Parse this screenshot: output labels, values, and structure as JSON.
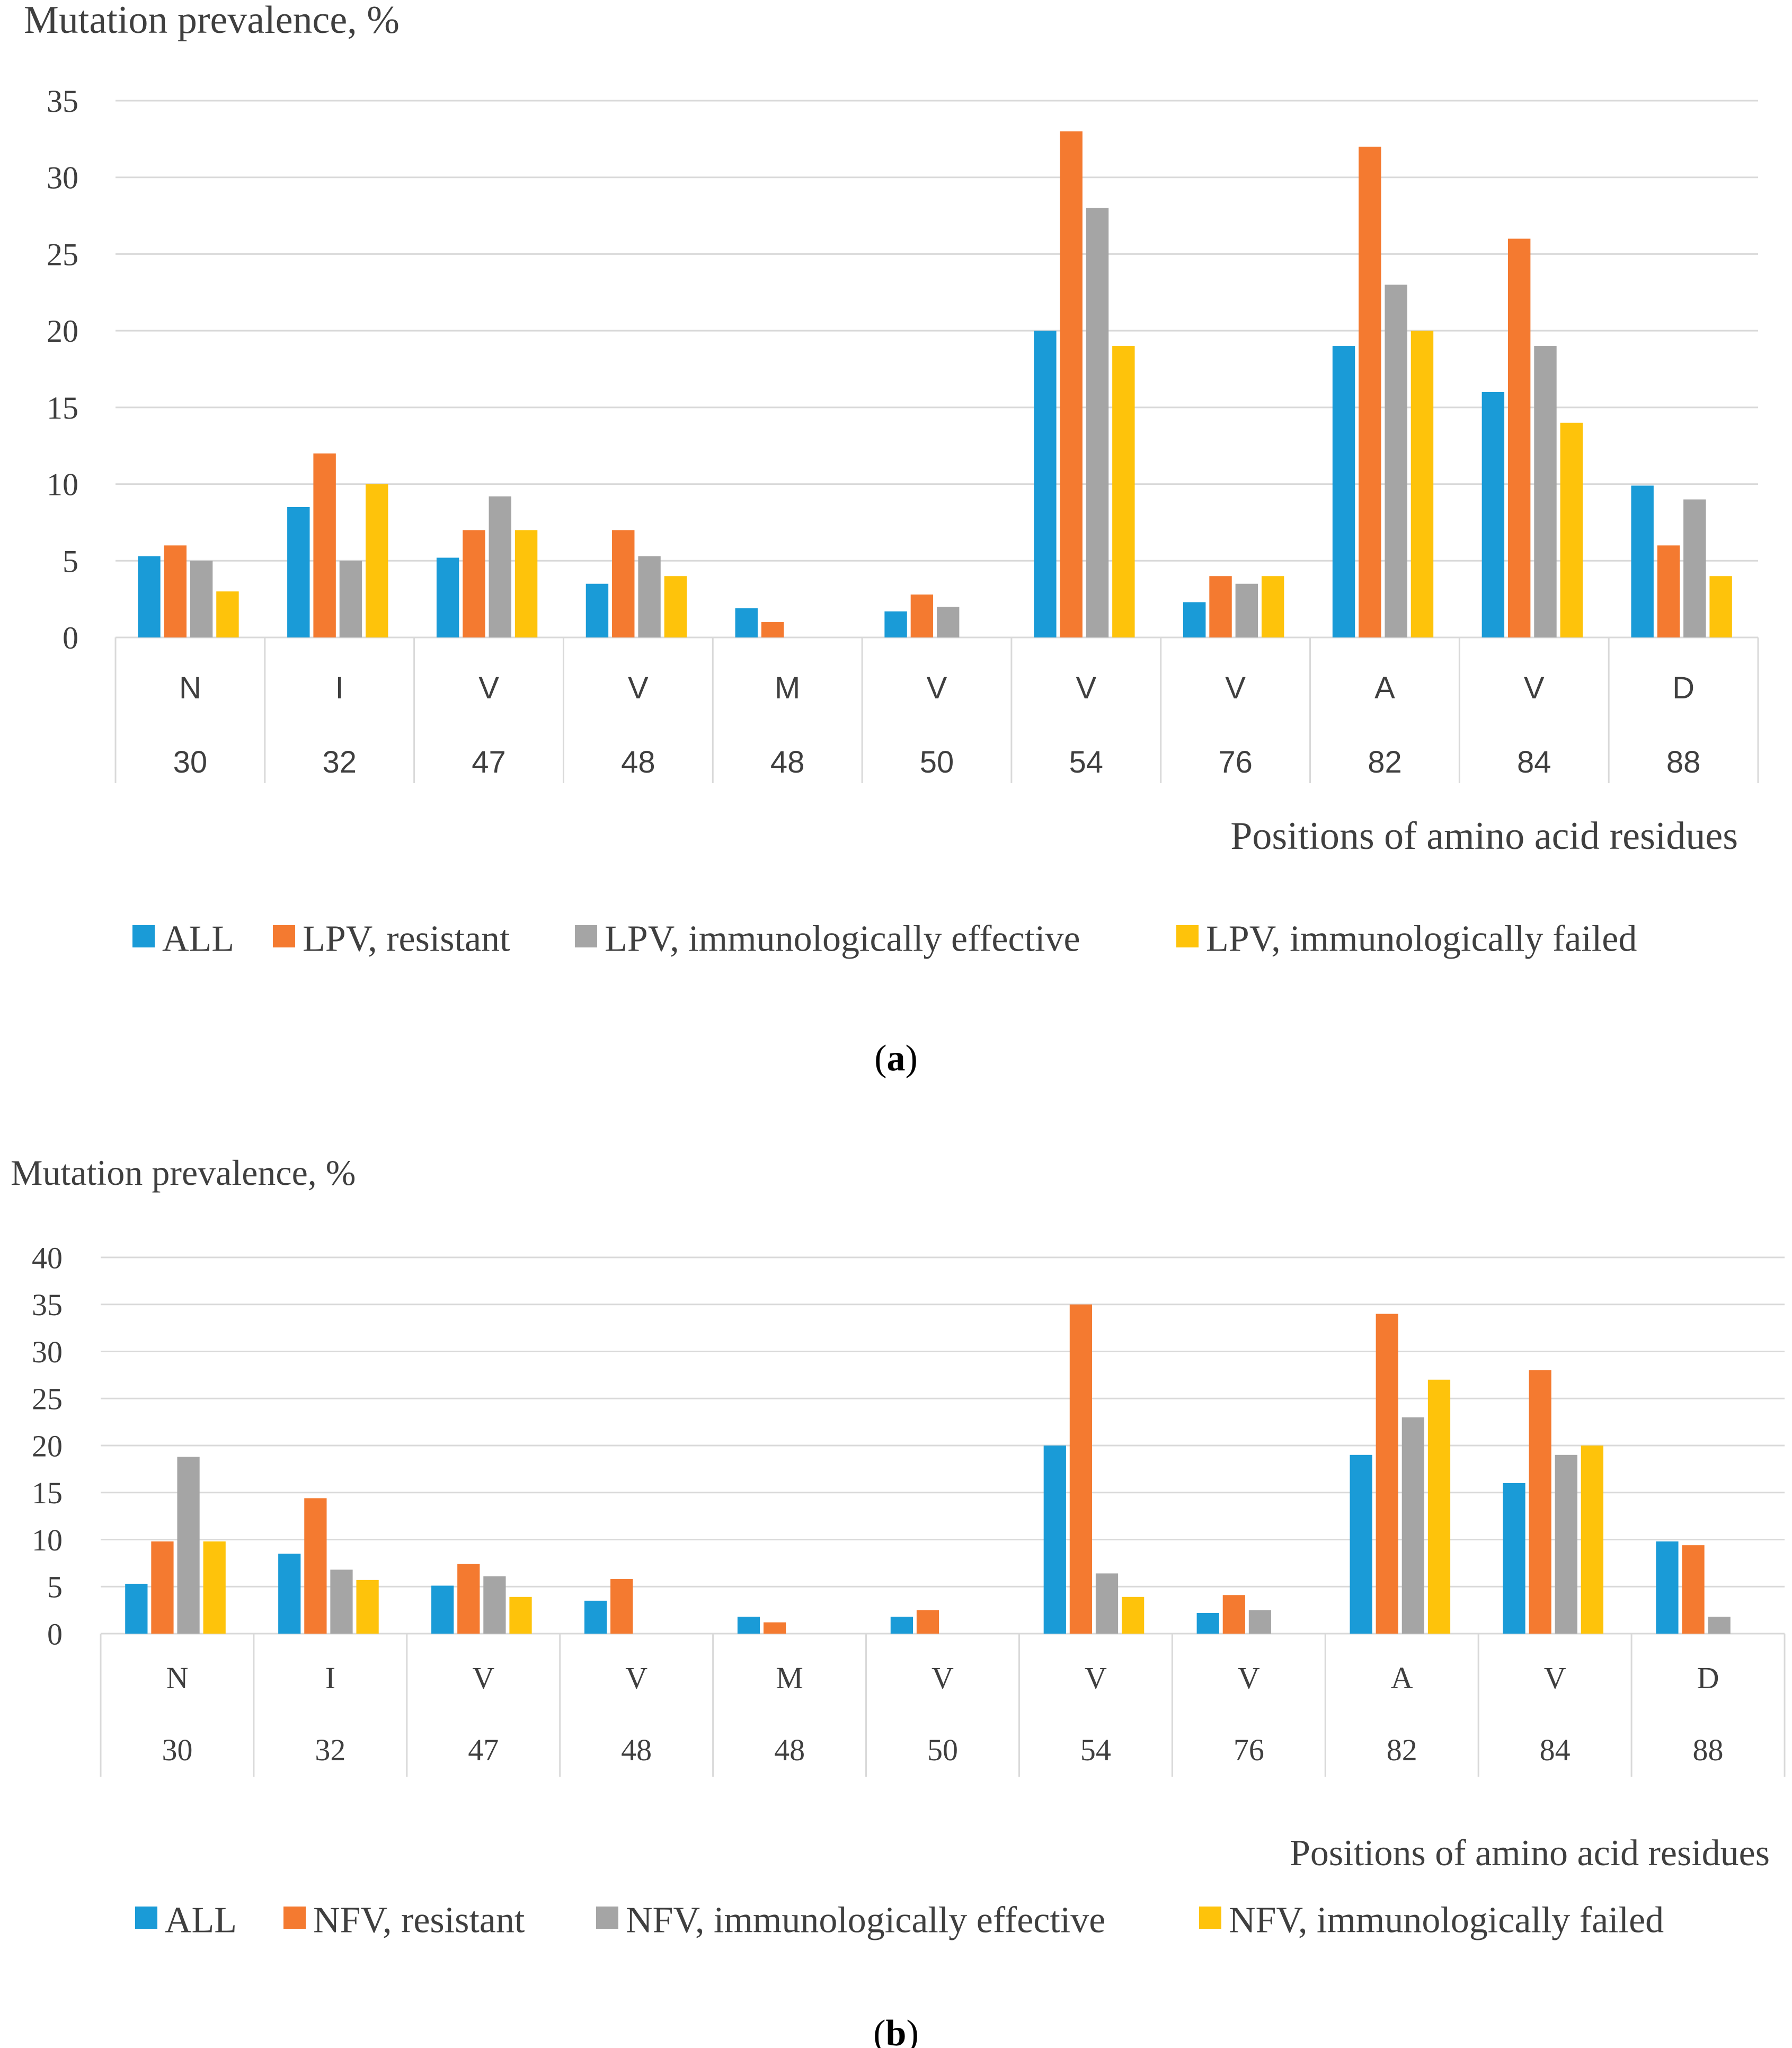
{
  "figure": {
    "series_colors": [
      "#1a9bd7",
      "#f47a30",
      "#a5a5a5",
      "#fec30b"
    ],
    "grid_color": "#d9d9d9",
    "text_color": "#3f3f3f"
  },
  "chart_data": [
    {
      "type": "bar",
      "panel_label": "(a)",
      "panel_letter": "a",
      "ylabel": "Mutation prevalence, %",
      "xlabel": "Positions of amino acid residues",
      "ylim": [
        0,
        35
      ],
      "yticks": [
        0,
        5,
        10,
        15,
        20,
        25,
        30,
        35
      ],
      "grid": true,
      "legend_position": "bottom",
      "categories": [
        {
          "residue": "N",
          "position": "30"
        },
        {
          "residue": "I",
          "position": "32"
        },
        {
          "residue": "V",
          "position": "47"
        },
        {
          "residue": "V",
          "position": "48"
        },
        {
          "residue": "M",
          "position": "48"
        },
        {
          "residue": "V",
          "position": "50"
        },
        {
          "residue": "V",
          "position": "54"
        },
        {
          "residue": "V",
          "position": "76"
        },
        {
          "residue": "A",
          "position": "82"
        },
        {
          "residue": "V",
          "position": "84"
        },
        {
          "residue": "D",
          "position": "88"
        }
      ],
      "series": [
        {
          "name": "ALL",
          "values": [
            5.3,
            8.5,
            5.2,
            3.5,
            1.9,
            1.7,
            20,
            2.3,
            19,
            16,
            9.9
          ]
        },
        {
          "name": "LPV, resistant",
          "values": [
            6,
            12,
            7,
            7,
            1,
            2.8,
            33,
            4,
            32,
            26,
            6
          ]
        },
        {
          "name": "LPV, immunologically effective",
          "values": [
            5,
            5,
            9.2,
            5.3,
            0,
            2,
            28,
            3.5,
            23,
            19,
            9
          ]
        },
        {
          "name": "LPV, immunologically failed",
          "values": [
            3,
            10,
            7,
            4,
            0,
            0,
            19,
            4,
            20,
            14,
            4
          ]
        }
      ]
    },
    {
      "type": "bar",
      "panel_label": "(b)",
      "panel_letter": "b",
      "ylabel": "Mutation prevalence, %",
      "xlabel": "Positions of amino acid residues",
      "ylim": [
        0,
        40
      ],
      "yticks": [
        0,
        5,
        10,
        15,
        20,
        25,
        30,
        35,
        40
      ],
      "grid": true,
      "legend_position": "bottom",
      "categories": [
        {
          "residue": "N",
          "position": "30"
        },
        {
          "residue": "I",
          "position": "32"
        },
        {
          "residue": "V",
          "position": "47"
        },
        {
          "residue": "V",
          "position": "48"
        },
        {
          "residue": "M",
          "position": "48"
        },
        {
          "residue": "V",
          "position": "50"
        },
        {
          "residue": "V",
          "position": "54"
        },
        {
          "residue": "V",
          "position": "76"
        },
        {
          "residue": "A",
          "position": "82"
        },
        {
          "residue": "V",
          "position": "84"
        },
        {
          "residue": "D",
          "position": "88"
        }
      ],
      "series": [
        {
          "name": "ALL",
          "values": [
            5.3,
            8.5,
            5.1,
            3.5,
            1.8,
            1.8,
            20,
            2.2,
            19,
            16,
            9.8
          ]
        },
        {
          "name": "NFV, resistant",
          "values": [
            9.8,
            14.4,
            7.4,
            5.8,
            1.2,
            2.5,
            35,
            4.1,
            34,
            28,
            9.4
          ]
        },
        {
          "name": "NFV, immunologically effective",
          "values": [
            18.8,
            6.8,
            6.1,
            0,
            0,
            0,
            6.4,
            2.5,
            23,
            19,
            1.8
          ]
        },
        {
          "name": "NFV, immunologically failed",
          "values": [
            9.8,
            5.7,
            3.9,
            0,
            0,
            0,
            3.9,
            0,
            27,
            20,
            0
          ]
        }
      ]
    }
  ]
}
